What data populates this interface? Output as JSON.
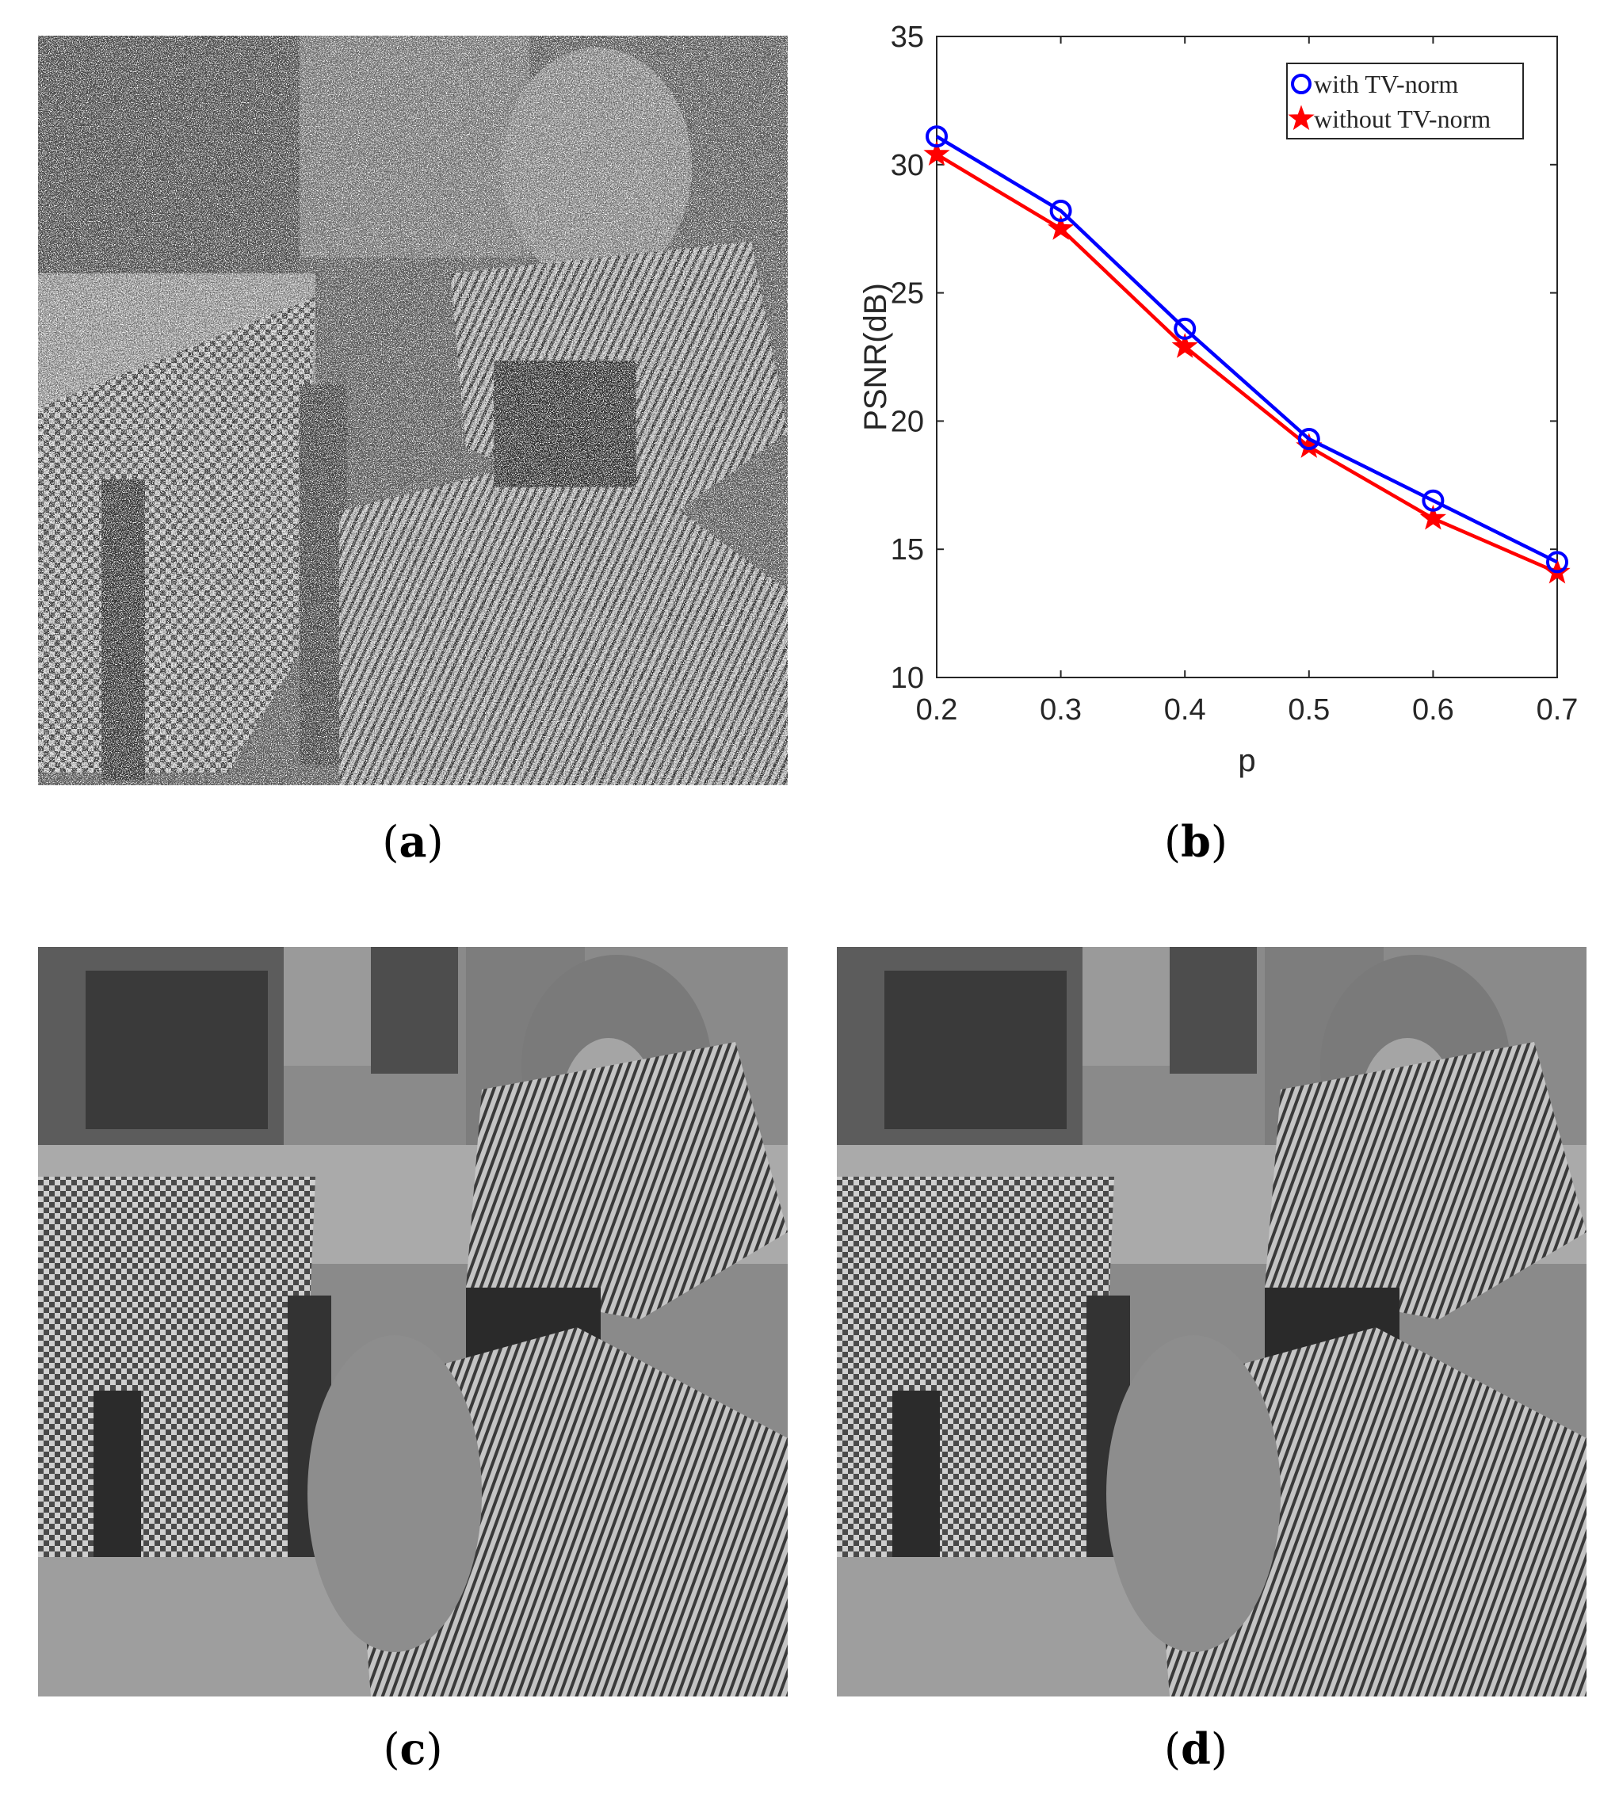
{
  "panels": {
    "a": {
      "caption_letter": "a",
      "subject": "noisy image"
    },
    "b": {
      "caption_letter": "b"
    },
    "c": {
      "caption_letter": "c",
      "subject": "restored image"
    },
    "d": {
      "caption_letter": "d",
      "subject": "restored image"
    }
  },
  "chart_data": {
    "type": "line",
    "title": "",
    "xlabel": "p",
    "ylabel": "PSNR(dB)",
    "x": [
      0.2,
      0.3,
      0.4,
      0.5,
      0.6,
      0.7
    ],
    "xticks": [
      "0.2",
      "0.3",
      "0.4",
      "0.5",
      "0.6",
      "0.7"
    ],
    "yticks": [
      "10",
      "15",
      "20",
      "25",
      "30",
      "35"
    ],
    "xlim": [
      0.2,
      0.7
    ],
    "ylim": [
      10,
      35
    ],
    "grid": false,
    "legend_position": "top-right",
    "series": [
      {
        "name": "with TV-norm",
        "color": "#0000ff",
        "marker": "circle",
        "values": [
          31.1,
          28.2,
          23.6,
          19.3,
          16.9,
          14.5
        ]
      },
      {
        "name": "without TV-norm",
        "color": "#ff0000",
        "marker": "star",
        "values": [
          30.4,
          27.5,
          22.9,
          19.0,
          16.2,
          14.1
        ]
      }
    ]
  }
}
